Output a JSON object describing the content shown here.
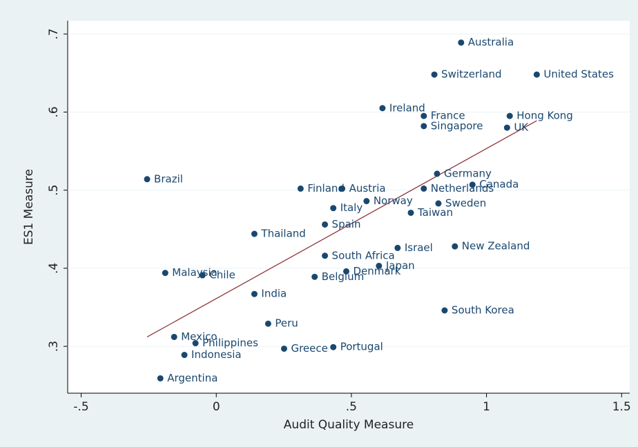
{
  "chart_data": {
    "type": "scatter",
    "x_label": "Audit Quality Measure",
    "y_label": "ES1 Measure",
    "labels": [
      "Australia",
      "Switzerland",
      "United States",
      "Ireland",
      "France",
      "Hong Kong",
      "Singapore",
      "UK",
      "Germany",
      "Canada",
      "Brazil",
      "Finland",
      "Austria",
      "Netherlands",
      "Norway",
      "Sweden",
      "Italy",
      "Taiwan",
      "Spain",
      "Thailand",
      "Israel",
      "New Zealand",
      "South Africa",
      "Japan",
      "Denmark",
      "Malaysia",
      "Chile",
      "Belgium",
      "India",
      "South Korea",
      "Peru",
      "Mexico",
      "Philippines",
      "Greece",
      "Portugal",
      "Indonesia",
      "Argentina"
    ],
    "x": [
      0.906,
      0.807,
      1.186,
      0.615,
      0.768,
      1.086,
      0.768,
      1.076,
      0.817,
      0.948,
      -0.256,
      0.312,
      0.466,
      0.768,
      0.556,
      0.822,
      0.433,
      0.72,
      0.402,
      0.141,
      0.671,
      0.883,
      0.402,
      0.602,
      0.481,
      -0.189,
      -0.051,
      0.364,
      0.141,
      0.845,
      0.192,
      -0.156,
      -0.077,
      0.251,
      0.433,
      -0.118,
      -0.207
    ],
    "values": [
      0.689,
      0.648,
      0.648,
      0.605,
      0.595,
      0.595,
      0.582,
      0.58,
      0.521,
      0.507,
      0.514,
      0.502,
      0.502,
      0.502,
      0.486,
      0.483,
      0.477,
      0.471,
      0.456,
      0.444,
      0.426,
      0.428,
      0.416,
      0.403,
      0.396,
      0.394,
      0.391,
      0.389,
      0.367,
      0.346,
      0.329,
      0.312,
      0.304,
      0.297,
      0.299,
      0.289,
      0.259
    ],
    "color": "#1a476f",
    "fit_line": {
      "x": [
        -0.256,
        1.186
      ],
      "y": [
        0.312,
        0.589
      ],
      "color": "#90353b"
    },
    "xlim": [
      -0.55,
      1.53
    ],
    "ylim": [
      0.24,
      0.717
    ],
    "xticks": [
      {
        "value": -0.5,
        "label": "-.5"
      },
      0,
      {
        "value": 0.5,
        "label": ".5"
      },
      1,
      1.5
    ],
    "yticks": [
      {
        "value": 0.3,
        "label": ".3"
      },
      {
        "value": 0.4,
        "label": ".4"
      },
      {
        "value": 0.5,
        "label": ".5"
      },
      {
        "value": 0.6,
        "label": ".6"
      },
      {
        "value": 0.7,
        "label": ".7"
      }
    ],
    "grid": true
  }
}
